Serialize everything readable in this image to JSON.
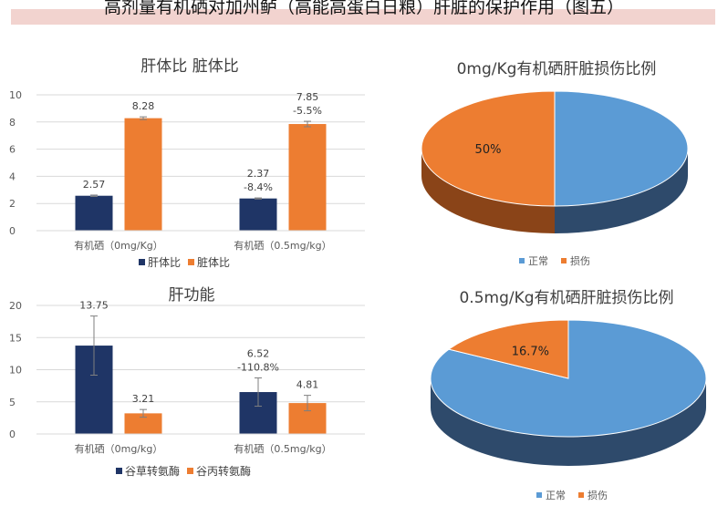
{
  "page": {
    "title": "高剂量有机硒对加州鲈（高能高蛋白日粮）肝脏的保护作用（图五）"
  },
  "colors": {
    "navy": "#1f3566",
    "orange": "#ed7d31",
    "blue": "#5b9bd5",
    "grid": "#d9d9d9",
    "axis": "#595959"
  },
  "chart_data": [
    {
      "type": "bar",
      "title": "肝体比 脏体比",
      "categories": [
        "有机硒（0mg/Kg）",
        "有机硒（0.5mg/kg）"
      ],
      "ylim": [
        0,
        10
      ],
      "yticks": [
        "0",
        "2",
        "4",
        "6",
        "8",
        "10"
      ],
      "series": [
        {
          "name": "肝体比",
          "values": [
            2.57,
            2.37
          ],
          "errors": [
            0.05,
            0.04
          ],
          "labels": [
            "2.57",
            "2.37\n-8.4%"
          ]
        },
        {
          "name": "脏体比",
          "values": [
            8.28,
            7.85
          ],
          "errors": [
            0.1,
            0.2
          ],
          "labels": [
            "8.28",
            "7.85\n-5.5%"
          ]
        }
      ],
      "legend_position": "bottom"
    },
    {
      "type": "bar",
      "title": "肝功能",
      "categories": [
        "有机硒（0mg/kg）",
        "有机硒（0.5mg/kg）"
      ],
      "ylim": [
        0,
        20
      ],
      "yticks": [
        "0",
        "5",
        "10",
        "15",
        "20"
      ],
      "series": [
        {
          "name": "谷草转氨酶",
          "values": [
            13.75,
            6.52
          ],
          "errors": [
            4.6,
            2.2
          ],
          "labels": [
            "13.75",
            "6.52\n-110.8%"
          ]
        },
        {
          "name": "谷丙转氨酶",
          "values": [
            3.21,
            4.81
          ],
          "errors": [
            0.6,
            1.2
          ],
          "labels": [
            "3.21",
            "4.81"
          ]
        }
      ],
      "legend_position": "bottom"
    },
    {
      "type": "pie",
      "title": "0mg/Kg有机硒肝脏损伤比例",
      "slices": [
        {
          "name": "正常",
          "value": 50
        },
        {
          "name": "损伤",
          "value": 50
        }
      ],
      "slice_label": "50%",
      "legend_position": "bottom"
    },
    {
      "type": "pie",
      "title": "0.5mg/Kg有机硒肝脏损伤比例",
      "slices": [
        {
          "name": "正常",
          "value": 83.3
        },
        {
          "name": "损伤",
          "value": 16.7
        }
      ],
      "slice_label": "16.7%",
      "legend_position": "bottom"
    }
  ]
}
